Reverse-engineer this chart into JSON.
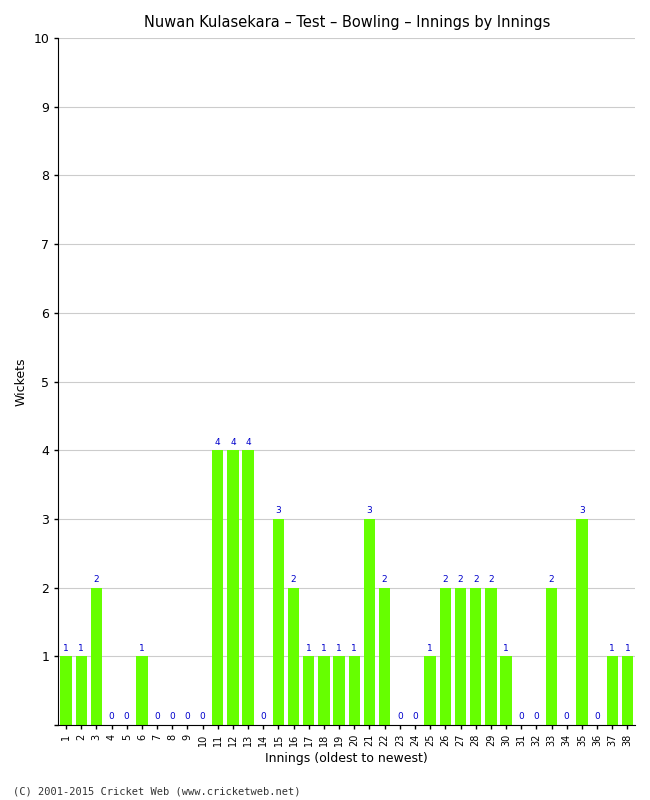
{
  "title": "Nuwan Kulasekara – Test – Bowling – Innings by Innings",
  "xlabel": "Innings (oldest to newest)",
  "ylabel": "Wickets",
  "footer": "(C) 2001-2015 Cricket Web (www.cricketweb.net)",
  "bar_color": "#66FF00",
  "label_color": "#0000CC",
  "background_color": "#FFFFFF",
  "grid_color": "#CCCCCC",
  "spine_color": "#000000",
  "ylim": [
    0,
    10
  ],
  "yticks": [
    0,
    1,
    2,
    3,
    4,
    5,
    6,
    7,
    8,
    9,
    10
  ],
  "innings": [
    1,
    2,
    3,
    4,
    5,
    6,
    7,
    8,
    9,
    10,
    11,
    12,
    13,
    14,
    15,
    16,
    17,
    18,
    19,
    20,
    21,
    22,
    23,
    24,
    25,
    26,
    27,
    28,
    29,
    30,
    31,
    32,
    33,
    34,
    35,
    36,
    37,
    38
  ],
  "wickets": [
    1,
    1,
    2,
    0,
    0,
    1,
    0,
    0,
    0,
    0,
    4,
    4,
    4,
    0,
    3,
    2,
    1,
    1,
    1,
    1,
    3,
    2,
    0,
    0,
    1,
    2,
    2,
    2,
    2,
    1,
    0,
    0,
    2,
    0,
    3,
    0,
    1,
    1
  ]
}
